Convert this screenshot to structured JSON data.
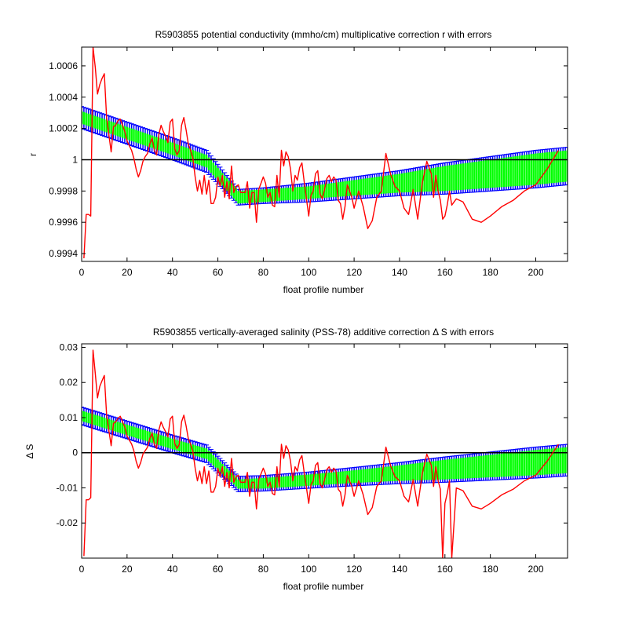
{
  "chart_data": [
    {
      "type": "line",
      "title": "R5903855 potential conductivity (mmho/cm) multiplicative correction r with errors",
      "xlabel": "float profile number",
      "ylabel": "r",
      "xlim": [
        0,
        214
      ],
      "ylim": [
        0.99935,
        1.00072
      ],
      "xticks": [
        0,
        20,
        40,
        60,
        80,
        100,
        120,
        140,
        160,
        180,
        200
      ],
      "xtick_labels": [
        "0",
        "20",
        "40",
        "60",
        "80",
        "100",
        "120",
        "140",
        "160",
        "180",
        "200"
      ],
      "yticks": [
        0.9994,
        0.9996,
        0.9998,
        1.0,
        1.0002,
        1.0004,
        1.0006
      ],
      "ytick_labels": [
        "0.9994",
        "0.9996",
        "0.9998",
        "1",
        "1.0002",
        "1.0004",
        "1.0006"
      ],
      "reference_line": 1.0,
      "grid": false,
      "band": {
        "x": [
          0,
          20,
          40,
          55,
          69,
          80,
          100,
          120,
          140,
          160,
          180,
          200,
          214
        ],
        "center": [
          1.00027,
          1.00017,
          1.00007,
          0.99999,
          0.99976,
          0.99977,
          0.99979,
          0.99982,
          0.99985,
          0.99988,
          0.99991,
          0.99994,
          0.99996
        ],
        "inner_err": [
          4e-05,
          4e-05,
          4e-05,
          4e-05,
          4e-05,
          4e-05,
          4e-05,
          5e-05,
          6e-05,
          8e-05,
          9e-05,
          0.0001,
          0.0001
        ],
        "outer_err": [
          7e-05,
          7e-05,
          7e-05,
          7e-05,
          5e-05,
          5e-05,
          6e-05,
          7e-05,
          8e-05,
          0.0001,
          0.00011,
          0.00012,
          0.00012
        ],
        "inner_color": "#00ff00",
        "outer_color": "#0000ff"
      },
      "series": [
        {
          "color": "#ff0000",
          "x": [
            1,
            2,
            3,
            4,
            5,
            6,
            7,
            8,
            9,
            10,
            11,
            12,
            13,
            14,
            15,
            16,
            17,
            18,
            19,
            20,
            21,
            22,
            23,
            24,
            25,
            26,
            27,
            28,
            29,
            30,
            31,
            32,
            33,
            34,
            35,
            36,
            37,
            38,
            39,
            40,
            41,
            42,
            43,
            44,
            45,
            46,
            47,
            48,
            49,
            50,
            51,
            52,
            53,
            54,
            55,
            56,
            57,
            58,
            59,
            60,
            61,
            62,
            63,
            64,
            65,
            66,
            67,
            68,
            69,
            70,
            71,
            72,
            73,
            74,
            75,
            76,
            77,
            78,
            79,
            80,
            81,
            82,
            83,
            84,
            85,
            86,
            87,
            88,
            89,
            90,
            91,
            92,
            93,
            94,
            95,
            96,
            97,
            98,
            99,
            100,
            101,
            102,
            103,
            104,
            105,
            106,
            107,
            108,
            109,
            110,
            111,
            112,
            113,
            114,
            115,
            116,
            117,
            118,
            119,
            120,
            122,
            124,
            126,
            128,
            130,
            132,
            134,
            136,
            138,
            140,
            142,
            144,
            146,
            148,
            150,
            152,
            154,
            155,
            156,
            157,
            158,
            159,
            160,
            161,
            162,
            163,
            165,
            168,
            172,
            176,
            180,
            185,
            190,
            195,
            200,
            205,
            210
          ],
          "y": [
            0.99937,
            0.99965,
            0.99965,
            0.99964,
            1.00072,
            1.00059,
            1.00042,
            1.00048,
            1.00052,
            1.00055,
            1.00027,
            1.00016,
            1.00005,
            1.00021,
            1.00022,
            1.00025,
            1.00026,
            1.00022,
            1.00018,
            1.00012,
            1.00009,
            1.00006,
            1.00001,
            0.99994,
            0.99989,
            0.99993,
            0.99999,
            1.00002,
            1.00004,
            1.0001,
            1.00014,
            1.00006,
            1.00003,
            1.00016,
            1.00022,
            1.00018,
            1.00015,
            1.00011,
            1.00024,
            1.00026,
            1.00007,
            1.00003,
            1.00006,
            1.00022,
            1.00027,
            1.00019,
            1.0001,
            1.00006,
            1.00001,
            0.99989,
            0.9998,
            0.99987,
            0.99978,
            0.9999,
            0.99978,
            0.99987,
            0.99972,
            0.99972,
            0.99976,
            0.99989,
            0.99983,
            0.9999,
            0.99976,
            0.99986,
            0.99975,
            0.99996,
            0.99979,
            0.99983,
            0.99984,
            0.99979,
            0.99979,
            0.99979,
            0.99986,
            0.99969,
            0.99979,
            0.99979,
            0.9996,
            0.99981,
            0.99985,
            0.99989,
            0.99985,
            0.99976,
            0.99979,
            0.99971,
            0.9997,
            0.9999,
            0.99976,
            1.00006,
            0.99996,
            1.00005,
            1.00002,
            0.99994,
            0.9998,
            0.9999,
            0.99987,
            0.99995,
            0.99998,
            0.99986,
            0.99975,
            0.99964,
            0.99977,
            0.9998,
            0.99991,
            0.99993,
            0.99978,
            0.99975,
            0.99981,
            0.99988,
            0.9999,
            0.99986,
            0.99989,
            0.99987,
            0.99974,
            0.99972,
            0.99962,
            0.9997,
            0.99984,
            0.9998,
            0.99976,
            0.99969,
            0.9998,
            0.9997,
            0.99956,
            0.99961,
            0.99976,
            0.9998,
            1.00004,
            0.99991,
            0.99983,
            0.9998,
            0.99969,
            0.99965,
            0.99981,
            0.99962,
            0.99985,
            0.99999,
            0.99991,
            0.99976,
            0.9999,
            0.9998,
            0.99974,
            0.99962,
            0.99964,
            0.99971,
            0.9998,
            0.99971,
            0.99975,
            0.99973,
            0.99962,
            0.9996,
            0.99964,
            0.9997,
            0.99974,
            0.9998,
            0.99984,
            0.99994,
            1.00006
          ]
        }
      ]
    },
    {
      "type": "line",
      "title": "R5903855 vertically-averaged salinity (PSS-78) additive correction Δ S with errors",
      "xlabel": "float profile number",
      "ylabel": "Δ S",
      "xlim": [
        0,
        214
      ],
      "ylim": [
        -0.03,
        0.031
      ],
      "xticks": [
        0,
        20,
        40,
        60,
        80,
        100,
        120,
        140,
        160,
        180,
        200
      ],
      "xtick_labels": [
        "0",
        "20",
        "40",
        "60",
        "80",
        "100",
        "120",
        "140",
        "160",
        "180",
        "200"
      ],
      "yticks": [
        -0.02,
        -0.01,
        0,
        0.01,
        0.02,
        0.03
      ],
      "ytick_labels": [
        "-0.02",
        "-0.01",
        "0",
        "0.01",
        "0.02",
        "0.03"
      ],
      "reference_line": 0,
      "grid": false,
      "band": {
        "x": [
          0,
          20,
          40,
          55,
          69,
          80,
          100,
          120,
          140,
          160,
          180,
          200,
          214
        ],
        "center": [
          0.0105,
          0.0065,
          0.0025,
          -0.0003,
          -0.0089,
          -0.0087,
          -0.0078,
          -0.0068,
          -0.0058,
          -0.0048,
          -0.0038,
          -0.0028,
          -0.0021
        ],
        "inner_err": [
          0.0015,
          0.0015,
          0.0015,
          0.0015,
          0.0013,
          0.0015,
          0.0016,
          0.0018,
          0.0022,
          0.0028,
          0.0032,
          0.0036,
          0.0037
        ],
        "outer_err": [
          0.0025,
          0.0025,
          0.0025,
          0.0025,
          0.0022,
          0.0022,
          0.0023,
          0.0026,
          0.003,
          0.0036,
          0.004,
          0.0044,
          0.0045
        ],
        "inner_color": "#00ff00",
        "outer_color": "#0000ff"
      },
      "series": [
        {
          "color": "#ff0000",
          "x": [
            1,
            2,
            3,
            4,
            5,
            6,
            7,
            8,
            9,
            10,
            11,
            12,
            13,
            14,
            15,
            16,
            17,
            18,
            19,
            20,
            21,
            22,
            23,
            24,
            25,
            26,
            27,
            28,
            29,
            30,
            31,
            32,
            33,
            34,
            35,
            36,
            37,
            38,
            39,
            40,
            41,
            42,
            43,
            44,
            45,
            46,
            47,
            48,
            49,
            50,
            51,
            52,
            53,
            54,
            55,
            56,
            57,
            58,
            59,
            60,
            61,
            62,
            63,
            64,
            65,
            66,
            67,
            68,
            69,
            70,
            71,
            72,
            73,
            74,
            75,
            76,
            77,
            78,
            79,
            80,
            81,
            82,
            83,
            84,
            85,
            86,
            87,
            88,
            89,
            90,
            91,
            92,
            93,
            94,
            95,
            96,
            97,
            98,
            99,
            100,
            101,
            102,
            103,
            104,
            105,
            106,
            107,
            108,
            109,
            110,
            111,
            112,
            113,
            114,
            115,
            116,
            117,
            118,
            119,
            120,
            122,
            124,
            126,
            128,
            130,
            132,
            134,
            136,
            138,
            140,
            142,
            144,
            146,
            148,
            150,
            152,
            154,
            155,
            156,
            157,
            158,
            159,
            160,
            161,
            162,
            163,
            165,
            168,
            172,
            176,
            180,
            185,
            190,
            195,
            200,
            205,
            210
          ],
          "y": [
            -0.0294,
            -0.0134,
            -0.0134,
            -0.0128,
            0.0292,
            0.0225,
            0.0156,
            0.0189,
            0.0205,
            0.022,
            0.0108,
            0.0063,
            0.002,
            0.0083,
            0.0088,
            0.0098,
            0.0104,
            0.0088,
            0.0073,
            0.0047,
            0.0036,
            0.0025,
            0.0006,
            -0.0024,
            -0.0044,
            -0.0028,
            -0.0004,
            0.0006,
            0.0016,
            0.004,
            0.0056,
            0.0024,
            0.0012,
            0.0064,
            0.0088,
            0.0072,
            0.006,
            0.0045,
            0.0096,
            0.0104,
            0.0027,
            0.0012,
            0.0024,
            0.0088,
            0.0107,
            0.0076,
            0.004,
            0.0024,
            0.0004,
            -0.0044,
            -0.008,
            -0.0052,
            -0.0088,
            -0.004,
            -0.0088,
            -0.0052,
            -0.0112,
            -0.0112,
            -0.0096,
            -0.0044,
            -0.0068,
            -0.004,
            -0.0096,
            -0.0056,
            -0.01,
            -0.0016,
            -0.0084,
            -0.0068,
            -0.0064,
            -0.0084,
            -0.0084,
            -0.0084,
            -0.0056,
            -0.0124,
            -0.0084,
            -0.0084,
            -0.016,
            -0.0076,
            -0.006,
            -0.0044,
            -0.006,
            -0.0096,
            -0.0084,
            -0.0116,
            -0.012,
            -0.004,
            -0.0096,
            0.0024,
            -0.0016,
            0.002,
            0.0008,
            -0.0024,
            -0.008,
            -0.004,
            -0.0052,
            -0.002,
            -0.0008,
            -0.0056,
            -0.01,
            -0.0144,
            -0.0092,
            -0.008,
            -0.0036,
            -0.0028,
            -0.0088,
            -0.01,
            -0.0076,
            -0.0048,
            -0.004,
            -0.0056,
            -0.0044,
            -0.0052,
            -0.0104,
            -0.0112,
            -0.0152,
            -0.012,
            -0.0064,
            -0.008,
            -0.0096,
            -0.0124,
            -0.008,
            -0.012,
            -0.0176,
            -0.0156,
            -0.0096,
            -0.008,
            0.0016,
            -0.0036,
            -0.0068,
            -0.008,
            -0.0124,
            -0.014,
            -0.0076,
            -0.0152,
            -0.006,
            -0.0004,
            -0.0036,
            -0.0096,
            -0.004,
            -0.008,
            -0.0104,
            -0.03,
            -0.0144,
            -0.0116,
            -0.008,
            -0.03,
            -0.01,
            -0.0108,
            -0.0152,
            -0.016,
            -0.0144,
            -0.012,
            -0.0104,
            -0.008,
            -0.0064,
            -0.0024,
            0.0024
          ]
        }
      ]
    }
  ]
}
